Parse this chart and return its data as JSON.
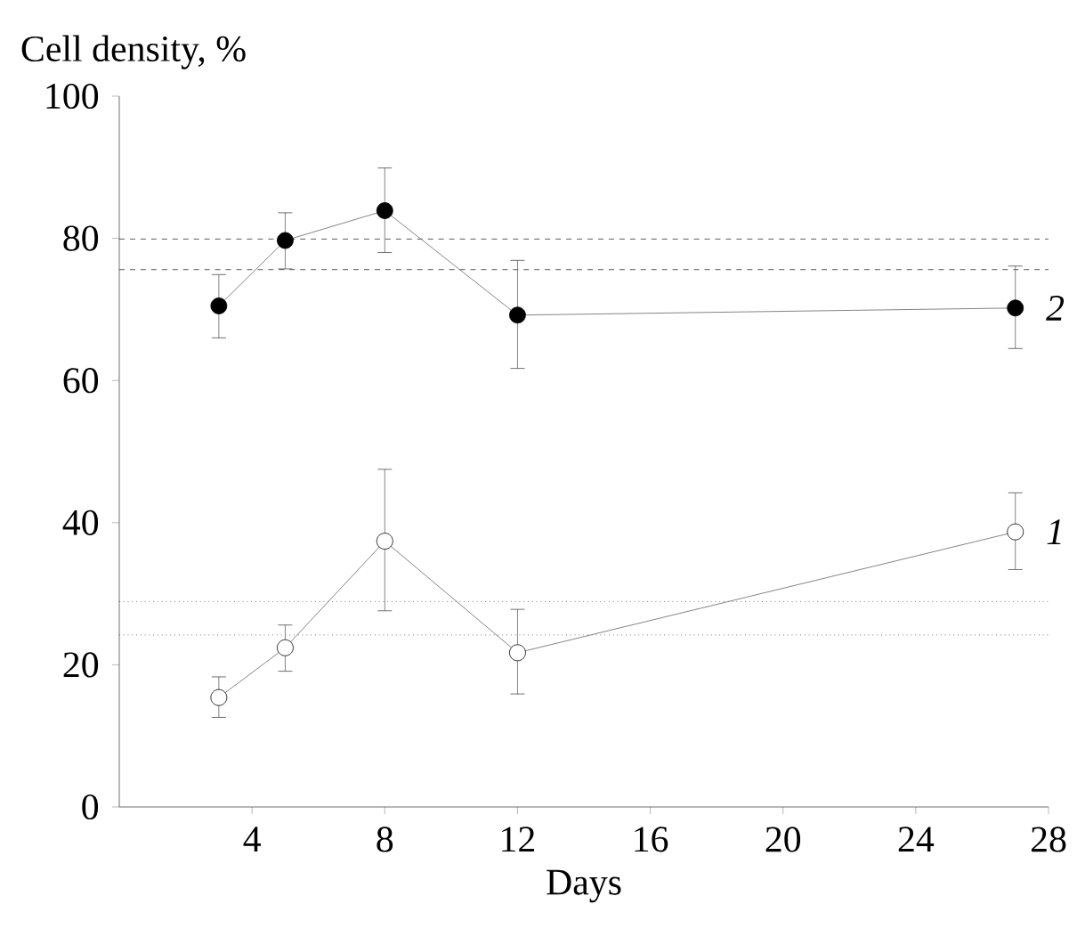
{
  "chart_data": {
    "type": "line",
    "ylabel": "Cell density, %",
    "xlabel": "Days",
    "xlim": [
      0,
      28
    ],
    "xticks": [
      4,
      8,
      12,
      16,
      20,
      24,
      28
    ],
    "ylim": [
      0,
      100
    ],
    "yticks": [
      0,
      20,
      40,
      60,
      80,
      100
    ],
    "marker": "circle",
    "line_style": "solid",
    "series": [
      {
        "name": "1",
        "color": "#ffffff",
        "x": [
          3,
          5,
          8,
          12,
          27
        ],
        "values": [
          15.4,
          22.4,
          37.4,
          21.7,
          38.7
        ],
        "errors": [
          [
            12.6,
            18.3
          ],
          [
            19.1,
            25.6
          ],
          [
            27.6,
            47.5
          ],
          [
            15.9,
            27.8
          ],
          [
            33.4,
            44.2
          ]
        ]
      },
      {
        "name": "2",
        "color": "#000000",
        "x": [
          3,
          5,
          8,
          12,
          27
        ],
        "values": [
          70.5,
          79.7,
          83.9,
          69.2,
          70.2
        ],
        "errors": [
          [
            66.0,
            74.9
          ],
          [
            75.7,
            83.6
          ],
          [
            78.0,
            89.9
          ],
          [
            61.7,
            76.9
          ],
          [
            64.5,
            76.1
          ]
        ]
      }
    ],
    "ref_lines": [
      {
        "axis": "y",
        "value": 79.9,
        "line_style": "dashed"
      },
      {
        "axis": "y",
        "value": 75.6,
        "line_style": "dashed"
      },
      {
        "axis": "y",
        "value": 28.9,
        "line_style": "dotted"
      },
      {
        "axis": "y",
        "value": 24.2,
        "line_style": "dotted"
      }
    ]
  }
}
